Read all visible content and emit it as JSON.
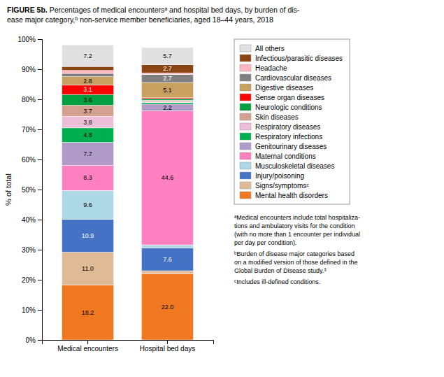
{
  "chart_data": {
    "type": "bar",
    "stacked": true,
    "title": "FIGURE 5b.",
    "subtitle": " Percentages of medical encountersᵃ and hospital bed days, by burden of dis-\nease major category,ᵇ non-service member beneficiaries, aged 18–44 years, 2018",
    "categories": [
      "Medical encounters",
      "Hospital bed days"
    ],
    "ylabel": "% of total",
    "ylim": [
      0,
      100
    ],
    "yticks": [
      {
        "value": 0,
        "label": "0%"
      },
      {
        "value": 10,
        "label": "10%"
      },
      {
        "value": 20,
        "label": "20%"
      },
      {
        "value": 30,
        "label": "30%"
      },
      {
        "value": 40,
        "label": "40%"
      },
      {
        "value": 50,
        "label": "50%"
      },
      {
        "value": 60,
        "label": "60%"
      },
      {
        "value": 70,
        "label": "70%"
      },
      {
        "value": 80,
        "label": "80%"
      },
      {
        "value": 90,
        "label": "90%"
      },
      {
        "value": 100,
        "label": "100%"
      }
    ],
    "grid": false,
    "legend": "right",
    "data_labels": true,
    "series": [
      {
        "name": "Mental health disorders",
        "color": "#F07820",
        "values": [
          18.2,
          22.0
        ],
        "value_labels": [
          "18.2",
          "22.0"
        ]
      },
      {
        "name": "Signs/symptomsᶜ",
        "color": "#DEBB96",
        "values": [
          11.0,
          1.0
        ],
        "value_labels": [
          "11.0",
          null
        ]
      },
      {
        "name": "Injury/poisoning",
        "color": "#4472C4",
        "values": [
          10.9,
          7.6
        ],
        "value_labels": [
          "10.9",
          "7.6"
        ]
      },
      {
        "name": "Musculoskeletal diseases",
        "color": "#ADD8E6",
        "values": [
          9.6,
          1.0
        ],
        "value_labels": [
          "9.6",
          null
        ]
      },
      {
        "name": "Maternal conditions",
        "color": "#FF80C0",
        "values": [
          8.3,
          44.6
        ],
        "value_labels": [
          "8.3",
          "44.6"
        ]
      },
      {
        "name": "Genitourinary diseases",
        "color": "#B09AC8",
        "values": [
          7.7,
          2.2
        ],
        "value_labels": [
          "7.7",
          "2.2"
        ]
      },
      {
        "name": "Respiratory infections",
        "color": "#00B050",
        "values": [
          4.8,
          0.5
        ],
        "value_labels": [
          "4.8",
          null
        ]
      },
      {
        "name": "Respiratory diseases",
        "color": "#EDBED8",
        "values": [
          3.8,
          0.4
        ],
        "value_labels": [
          "3.8",
          null
        ]
      },
      {
        "name": "Skin diseases",
        "color": "#D4A090",
        "values": [
          3.7,
          0.4
        ],
        "value_labels": [
          "3.7",
          null
        ]
      },
      {
        "name": "Neurologic conditions",
        "color": "#00A040",
        "values": [
          3.6,
          0.5
        ],
        "value_labels": [
          "3.6",
          null
        ]
      },
      {
        "name": "Sense organ diseases",
        "color": "#FF0000",
        "values": [
          3.1,
          0.3
        ],
        "value_labels": [
          "3.1",
          null
        ]
      },
      {
        "name": "Digestive diseases",
        "color": "#C8A060",
        "values": [
          2.8,
          5.1
        ],
        "value_labels": [
          "2.8",
          "5.1"
        ]
      },
      {
        "name": "Cardiovascular diseases",
        "color": "#808080",
        "values": [
          1.1,
          2.7
        ],
        "value_labels": [
          null,
          "2.7"
        ]
      },
      {
        "name": "Headache",
        "color": "#FFB6C1",
        "values": [
          1.0,
          0.5
        ],
        "value_labels": [
          null,
          null
        ]
      },
      {
        "name": "Infectious/parasitic diseases",
        "color": "#8B4513",
        "values": [
          1.3,
          2.7
        ],
        "value_labels": [
          null,
          "2.7"
        ]
      },
      {
        "name": "All others",
        "color": "#E0E0E0",
        "values": [
          7.2,
          5.7
        ],
        "value_labels": [
          "7.2",
          "5.7"
        ]
      }
    ],
    "annotations": [
      "ᵃMedical encounters include total hospitaliza-\ntions and ambulatory visits for the condition\n(with no more than 1 encounter per individual\nper day per condition).",
      "ᵇBurden of disease major categories based\non a modified version of those defined in the\nGlobal Burden of Disease study.³",
      "ᶜIncludes ill-defined conditions."
    ]
  }
}
